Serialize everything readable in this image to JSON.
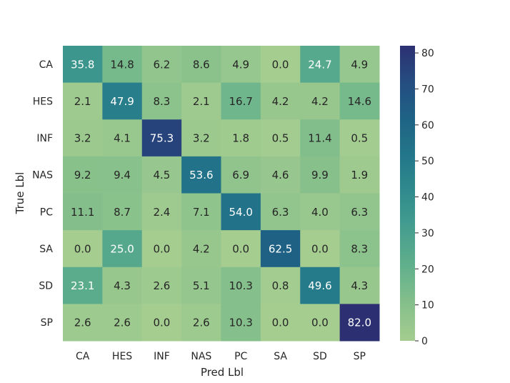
{
  "chart_data": {
    "type": "heatmap",
    "title": "",
    "xlabel": "Pred Lbl",
    "ylabel": "True Lbl",
    "x_categories": [
      "CA",
      "HES",
      "INF",
      "NAS",
      "PC",
      "SA",
      "SD",
      "SP"
    ],
    "y_categories": [
      "CA",
      "HES",
      "INF",
      "NAS",
      "PC",
      "SA",
      "SD",
      "SP"
    ],
    "values": [
      [
        35.8,
        14.8,
        6.2,
        8.6,
        4.9,
        0.0,
        24.7,
        4.9
      ],
      [
        2.1,
        47.9,
        8.3,
        2.1,
        16.7,
        4.2,
        4.2,
        14.6
      ],
      [
        3.2,
        4.1,
        75.3,
        3.2,
        1.8,
        0.5,
        11.4,
        0.5
      ],
      [
        9.2,
        9.4,
        4.5,
        53.6,
        6.9,
        4.6,
        9.9,
        1.9
      ],
      [
        11.1,
        8.7,
        2.4,
        7.1,
        54.0,
        6.3,
        4.0,
        6.3
      ],
      [
        0.0,
        25.0,
        0.0,
        4.2,
        0.0,
        62.5,
        0.0,
        8.3
      ],
      [
        23.1,
        4.3,
        2.6,
        5.1,
        10.3,
        0.8,
        49.6,
        4.3
      ],
      [
        2.6,
        2.6,
        0.0,
        2.6,
        10.3,
        0.0,
        0.0,
        82.0
      ]
    ],
    "colormap": "crest",
    "color_range": [
      0,
      82
    ],
    "colorbar_ticks": [
      0,
      10,
      20,
      30,
      40,
      50,
      60,
      70,
      80
    ],
    "value_format": "one decimal",
    "grid": false,
    "legend": "colorbar-right"
  }
}
